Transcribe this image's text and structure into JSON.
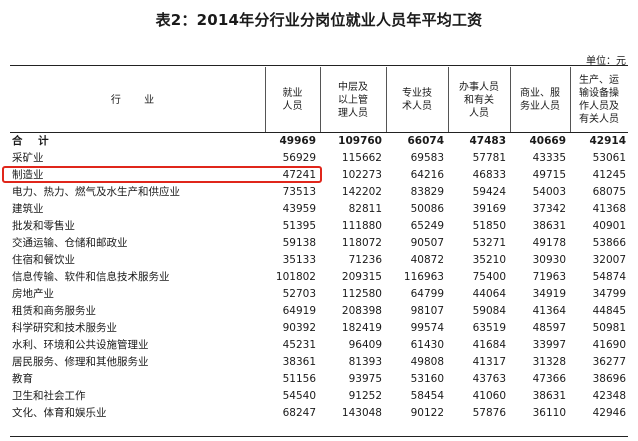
{
  "title": "表2：2014年分行业分岗位就业人员年平均工资",
  "unit": "单位：元",
  "columns": [
    "行  业",
    "就业\n人员",
    "中层及\n以上管\n理人员",
    "专业技\n术人员",
    "办事人员\n和有关\n人员",
    "商业、服\n务业人员",
    "生产、运\n输设备操\n作人员及\n有关人员"
  ],
  "rows": [
    {
      "name": "合  计",
      "values": [
        "49969",
        "109760",
        "66074",
        "47483",
        "40669",
        "42914"
      ]
    },
    {
      "name": "采矿业",
      "values": [
        "56929",
        "115662",
        "69583",
        "57781",
        "43335",
        "53061"
      ]
    },
    {
      "name": "制造业",
      "values": [
        "47241",
        "102273",
        "64216",
        "46833",
        "49715",
        "41245"
      ]
    },
    {
      "name": "电力、热力、燃气及水生产和供应业",
      "values": [
        "73513",
        "142202",
        "83829",
        "59424",
        "54003",
        "68075"
      ]
    },
    {
      "name": "建筑业",
      "values": [
        "43959",
        "82811",
        "50086",
        "39169",
        "37342",
        "41368"
      ]
    },
    {
      "name": "批发和零售业",
      "values": [
        "51395",
        "111880",
        "65249",
        "51850",
        "38631",
        "40901"
      ]
    },
    {
      "name": "交通运输、仓储和邮政业",
      "values": [
        "59138",
        "118072",
        "90507",
        "53271",
        "49178",
        "53866"
      ]
    },
    {
      "name": "住宿和餐饮业",
      "values": [
        "35133",
        "71236",
        "40872",
        "35210",
        "30930",
        "32007"
      ]
    },
    {
      "name": "信息传输、软件和信息技术服务业",
      "values": [
        "101802",
        "209315",
        "116963",
        "75400",
        "71963",
        "54874"
      ]
    },
    {
      "name": "房地产业",
      "values": [
        "52703",
        "112580",
        "64799",
        "44064",
        "34919",
        "34799"
      ]
    },
    {
      "name": "租赁和商务服务业",
      "values": [
        "64919",
        "208398",
        "98107",
        "59084",
        "41364",
        "44845"
      ]
    },
    {
      "name": "科学研究和技术服务业",
      "values": [
        "90392",
        "182419",
        "99574",
        "63519",
        "48597",
        "50981"
      ]
    },
    {
      "name": "水利、环境和公共设施管理业",
      "values": [
        "45231",
        "96409",
        "61430",
        "41684",
        "33997",
        "41690"
      ]
    },
    {
      "name": "居民服务、修理和其他服务业",
      "values": [
        "38361",
        "81393",
        "49808",
        "41317",
        "31328",
        "36277"
      ]
    },
    {
      "name": "教育",
      "values": [
        "51156",
        "93975",
        "53160",
        "43763",
        "47366",
        "38696"
      ]
    },
    {
      "name": "卫生和社会工作",
      "values": [
        "54540",
        "91252",
        "58454",
        "41060",
        "38631",
        "42348"
      ]
    },
    {
      "name": "文化、体育和娱乐业",
      "values": [
        "68247",
        "143048",
        "90122",
        "57876",
        "36110",
        "42946"
      ]
    }
  ],
  "highlight": {
    "row": "制造业",
    "color": "#e0261b"
  }
}
